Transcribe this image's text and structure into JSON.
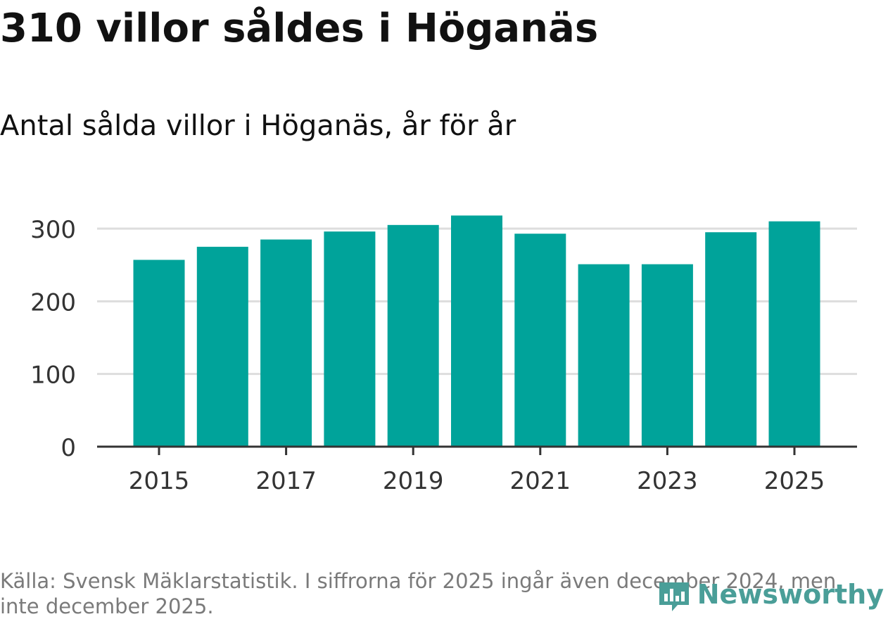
{
  "header": {
    "title": "310 villor såldes i Höganäs",
    "subtitle": "Antal sålda villor i Höganäs, år för år"
  },
  "footer": {
    "source": "Källa: Svensk Mäklarstatistik. I siffrorna för 2025 ingår även december 2024, men inte december 2025.",
    "logo_text": "Newsworthy"
  },
  "colors": {
    "bar": "#00a39a",
    "grid": "#dddddd",
    "axis": "#333333",
    "logo": "#4a9e98"
  },
  "chart_data": {
    "type": "bar",
    "title": "310 villor såldes i Höganäs",
    "subtitle": "Antal sålda villor i Höganäs, år för år",
    "categories": [
      2015,
      2016,
      2017,
      2018,
      2019,
      2020,
      2021,
      2022,
      2023,
      2024,
      2025
    ],
    "values": [
      257,
      275,
      285,
      296,
      305,
      318,
      293,
      251,
      251,
      295,
      310
    ],
    "x_tick_labels": [
      "2015",
      "2017",
      "2019",
      "2021",
      "2023",
      "2025"
    ],
    "y_ticks": [
      0,
      100,
      200,
      300
    ],
    "ylim": [
      0,
      330
    ],
    "xlabel": "",
    "ylabel": "",
    "grid": true,
    "legend": "none"
  }
}
